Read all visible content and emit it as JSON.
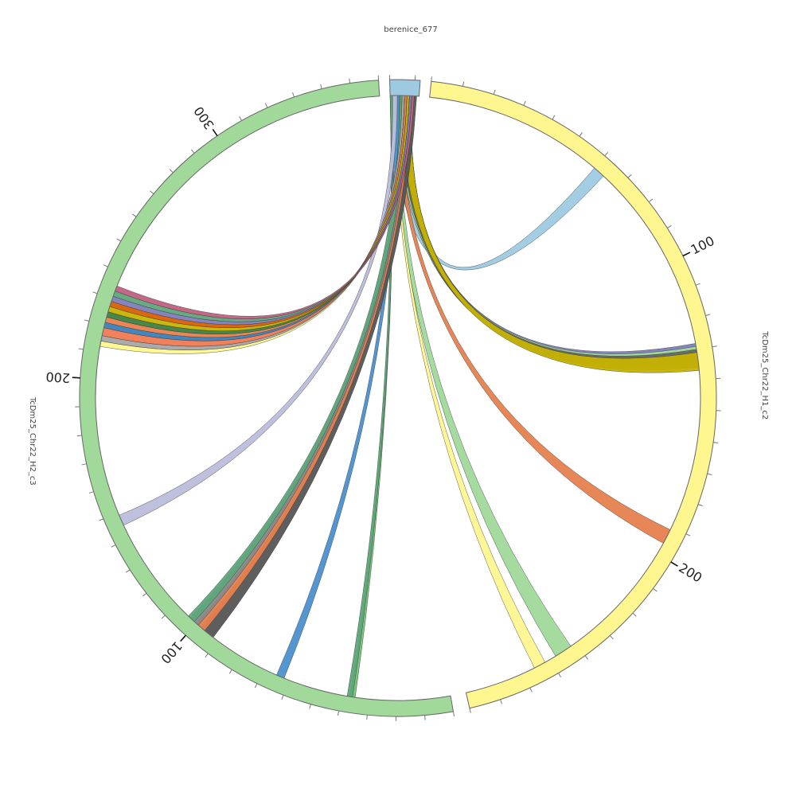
{
  "chart_data": {
    "type": "circos",
    "segments": [
      {
        "name": "berenice_677",
        "length": 12,
        "color": "#9ecae1",
        "tick_labels": []
      },
      {
        "name": "TcDm25_Chr22_H1_c2",
        "length": 280,
        "color": "#fff68f",
        "tick_labels": [
          "100",
          "200"
        ]
      },
      {
        "name": "TcDm25_Chr22_H2_c3",
        "length": 360,
        "color": "#a1d99b",
        "tick_labels": [
          "100",
          "200",
          "300"
        ]
      }
    ],
    "links": [
      {
        "from": [
          1,
          8
        ],
        "to_segment": "TcDm25_Chr22_H1_c2",
        "to": [
          60,
          64
        ],
        "color": "#9ecae1"
      },
      {
        "from": [
          3,
          9
        ],
        "to_segment": "TcDm25_Chr22_H1_c2",
        "to": [
          128,
          135
        ],
        "color": "#807dba"
      },
      {
        "from": [
          3,
          9
        ],
        "to_segment": "TcDm25_Chr22_H1_c2",
        "to": [
          129,
          134
        ],
        "color": "#a1d99b"
      },
      {
        "from": [
          4,
          9
        ],
        "to_segment": "TcDm25_Chr22_H1_c2",
        "to": [
          130,
          136
        ],
        "color": "#666666"
      },
      {
        "from": [
          5,
          9
        ],
        "to_segment": "TcDm25_Chr22_H1_c2",
        "to": [
          131,
          137
        ],
        "color": "#c7b300"
      },
      {
        "from": [
          2,
          4
        ],
        "to_segment": "TcDm25_Chr22_H1_c2",
        "to": [
          191,
          196
        ],
        "color": "#e6804d"
      },
      {
        "from": [
          1,
          3
        ],
        "to_segment": "TcDm25_Chr22_H1_c2",
        "to": [
          242,
          248
        ],
        "color": "#a1d99b"
      },
      {
        "from": [
          1,
          2
        ],
        "to_segment": "TcDm25_Chr22_H1_c2",
        "to": [
          252,
          256
        ],
        "color": "#fff68f"
      },
      {
        "from": [
          0,
          1
        ],
        "to_segment": "TcDm25_Chr22_H2_c3",
        "to": [
          35,
          37
        ],
        "color": "#74c476"
      },
      {
        "from": [
          0,
          1
        ],
        "to_segment": "TcDm25_Chr22_H2_c3",
        "to": [
          36,
          38
        ],
        "color": "#5fa77b"
      },
      {
        "from": [
          2,
          4
        ],
        "to_segment": "TcDm25_Chr22_H2_c3",
        "to": [
          62,
          65
        ],
        "color": "#4a90d0"
      },
      {
        "from": [
          7,
          11
        ],
        "to_segment": "TcDm25_Chr22_H2_c3",
        "to": [
          92,
          98
        ],
        "color": "#555555"
      },
      {
        "from": [
          6,
          9
        ],
        "to_segment": "TcDm25_Chr22_H2_c3",
        "to": [
          96,
          100
        ],
        "color": "#e6804d"
      },
      {
        "from": [
          5,
          8
        ],
        "to_segment": "TcDm25_Chr22_H2_c3",
        "to": [
          99,
          103
        ],
        "color": "#888888"
      },
      {
        "from": [
          4,
          7
        ],
        "to_segment": "TcDm25_Chr22_H2_c3",
        "to": [
          101,
          104
        ],
        "color": "#5fa77b"
      },
      {
        "from": [
          1,
          3
        ],
        "to_segment": "TcDm25_Chr22_H2_c3",
        "to": [
          145,
          149
        ],
        "color": "#bcbddc"
      },
      {
        "from": [
          5,
          6
        ],
        "to_segment": "TcDm25_Chr22_H2_c3",
        "to": [
          212,
          214
        ],
        "color": "#fff68f"
      },
      {
        "from": [
          5,
          6
        ],
        "to_segment": "TcDm25_Chr22_H2_c3",
        "to": [
          214,
          216
        ],
        "color": "#a7a7a7"
      },
      {
        "from": [
          6,
          7
        ],
        "to_segment": "TcDm25_Chr22_H2_c3",
        "to": [
          216,
          219
        ],
        "color": "#f07a52"
      },
      {
        "from": [
          6,
          7
        ],
        "to_segment": "TcDm25_Chr22_H2_c3",
        "to": [
          219,
          221
        ],
        "color": "#3b7fb8"
      },
      {
        "from": [
          6,
          7
        ],
        "to_segment": "TcDm25_Chr22_H2_c3",
        "to": [
          221,
          223
        ],
        "color": "#e6804d"
      },
      {
        "from": [
          7,
          8
        ],
        "to_segment": "TcDm25_Chr22_H2_c3",
        "to": [
          223,
          225
        ],
        "color": "#3f7f3f"
      },
      {
        "from": [
          7,
          8
        ],
        "to_segment": "TcDm25_Chr22_H2_c3",
        "to": [
          225,
          227
        ],
        "color": "#c7b300"
      },
      {
        "from": [
          8,
          9
        ],
        "to_segment": "TcDm25_Chr22_H2_c3",
        "to": [
          227,
          229
        ],
        "color": "#d95f02"
      },
      {
        "from": [
          8,
          9
        ],
        "to_segment": "TcDm25_Chr22_H2_c3",
        "to": [
          229,
          231
        ],
        "color": "#807dba"
      },
      {
        "from": [
          9,
          10
        ],
        "to_segment": "TcDm25_Chr22_H2_c3",
        "to": [
          231,
          233
        ],
        "color": "#5fa77b"
      },
      {
        "from": [
          9,
          10
        ],
        "to_segment": "TcDm25_Chr22_H2_c3",
        "to": [
          233,
          235
        ],
        "color": "#c06080"
      }
    ]
  }
}
